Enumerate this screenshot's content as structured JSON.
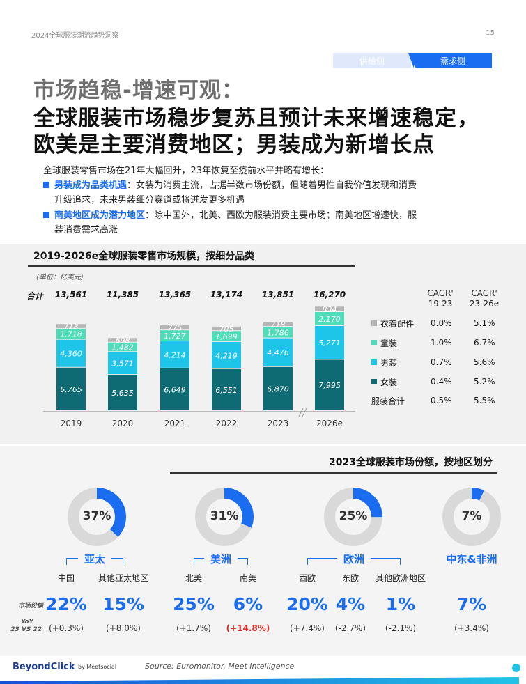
{
  "header": {
    "title": "2024全球服装潮流趋势洞察",
    "page": "15"
  },
  "tabs": {
    "supply": "供给侧",
    "demand": "需求侧"
  },
  "headline": {
    "line1": "市场趋稳-增速可观：",
    "line2": "全球服装市场稳步复苏且预计未来增速稳定，",
    "line3": "欧美是主要消费地区；男装成为新增长点"
  },
  "intro": "全球服装零售市场在21年大幅回升，23年恢复至疫前水平并略有增长：",
  "bullets": [
    {
      "highlight": "男装成为品类机遇",
      "line1": "：女装为消费主流，占据半数市场份额，但随着男性自我价值发现和消费",
      "line2": "升级追求，未来男装细分赛道或将迸发更多机遇"
    },
    {
      "highlight": "南美地区成为潜力地区",
      "line1": "：除中国外，北美、西欧为服装消费主要市场；南美地区增速快，服",
      "line2": "装消费需求高涨"
    }
  ],
  "chart_data": {
    "type": "bar",
    "title": "2019-2026e全球服装零售市场规模，按细分品类",
    "unit": "(单位：亿美元)",
    "total_label": "合计",
    "categories": [
      "2019",
      "2020",
      "2021",
      "2022",
      "2023",
      "2026e"
    ],
    "totals": [
      "13,561",
      "11,385",
      "13,365",
      "13,174",
      "13,851",
      "16,270"
    ],
    "series": [
      {
        "name": "女装",
        "color": "#0f6b73",
        "values": [
          6765,
          5635,
          6649,
          6551,
          6870,
          7995
        ],
        "labels": [
          "6,765",
          "5,635",
          "6,649",
          "6,551",
          "6,870",
          "7,995"
        ]
      },
      {
        "name": "男装",
        "color": "#1ec5e8",
        "values": [
          4360,
          3571,
          4214,
          4219,
          4476,
          5271
        ],
        "labels": [
          "4,360",
          "3,571",
          "4,214",
          "4,219",
          "4,476",
          "5,271"
        ]
      },
      {
        "name": "童装",
        "color": "#4fdcb8",
        "values": [
          1718,
          1482,
          1727,
          1699,
          1786,
          2170
        ],
        "labels": [
          "1,718",
          "1,482",
          "1,727",
          "1,699",
          "1,786",
          "2,170"
        ]
      },
      {
        "name": "衣着配件",
        "color": "#b5b5b5",
        "values": [
          718,
          698,
          775,
          705,
          718,
          834
        ],
        "labels": [
          "718",
          "698",
          "775",
          "705",
          "718",
          "834"
        ]
      }
    ],
    "cagr_headers": [
      "CAGR' 19-23",
      "CAGR' 23-26e"
    ],
    "legend": [
      {
        "name": "衣着配件",
        "color": "#b5b5b5",
        "c1": "0.0%",
        "c2": "5.1%"
      },
      {
        "name": "童装",
        "color": "#4fdcb8",
        "c1": "1.0%",
        "c2": "6.7%"
      },
      {
        "name": "男装",
        "color": "#1ec5e8",
        "c1": "0.7%",
        "c2": "5.6%"
      },
      {
        "name": "女装",
        "color": "#0f6b73",
        "c1": "0.4%",
        "c2": "5.2%"
      },
      {
        "name": "服装合计",
        "color": "",
        "c1": "0.5%",
        "c2": "5.5%"
      }
    ],
    "ylim": [
      0,
      17000
    ]
  },
  "regions": {
    "title": "2023全球服装市场份额，按地区划分",
    "row_share_label": "市场份额",
    "row_yoy_label1": "YoY",
    "row_yoy_label2": "23 VS 22",
    "donuts": [
      {
        "label": "37%",
        "value": 37,
        "region": "亚太",
        "subs": [
          {
            "name": "中国",
            "share": "22%",
            "yoy": "(+0.3%)"
          },
          {
            "name": "其他亚太地区",
            "share": "15%",
            "yoy": "(+8.0%)"
          }
        ]
      },
      {
        "label": "31%",
        "value": 31,
        "region": "美洲",
        "subs": [
          {
            "name": "北美",
            "share": "25%",
            "yoy": "(+1.7%)"
          },
          {
            "name": "南美",
            "share": "6%",
            "yoy": "(+14.8%)"
          }
        ]
      },
      {
        "label": "25%",
        "value": 25,
        "region": "欧洲",
        "subs": [
          {
            "name": "西欧",
            "share": "20%",
            "yoy": "(+7.4%)"
          },
          {
            "name": "东欧",
            "share": "4%",
            "yoy": "(-2.7%)"
          },
          {
            "name": "其他欧洲地区",
            "share": "1%",
            "yoy": "(-2.1%)"
          }
        ]
      },
      {
        "label": "7%",
        "value": 7,
        "region": "中东&非洲",
        "subs": [
          {
            "name": "",
            "share": "7%",
            "yoy": "(+3.4%)"
          }
        ]
      }
    ]
  },
  "footer": {
    "brand": "BeyondClick",
    "partner": "by Meetsocial",
    "source": "Source: Euromonitor, Meet Intelligence"
  },
  "colors": {
    "accent": "#1a6cf0",
    "donut_bg": "#d9d9d9"
  }
}
